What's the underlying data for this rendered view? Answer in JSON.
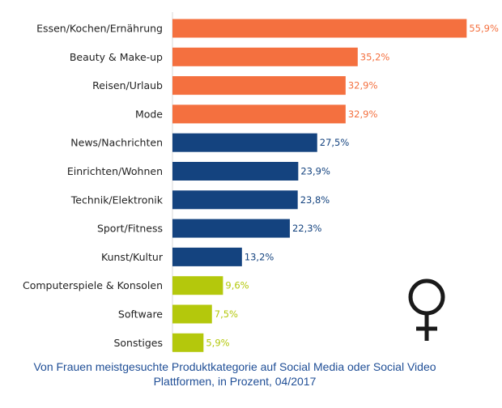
{
  "chart_data": {
    "type": "bar",
    "orientation": "horizontal",
    "title": "",
    "xlabel": "",
    "ylabel": "",
    "xlim": [
      0,
      60
    ],
    "grid": false,
    "legend": "none",
    "categories": [
      "Essen/Kochen/Ernährung",
      "Beauty & Make-up",
      "Reisen/Urlaub",
      "Mode",
      "News/Nachrichten",
      "Einrichten/Wohnen",
      "Technik/Elektronik",
      "Sport/Fitness",
      "Kunst/Kultur",
      "Computerspiele & Konsolen",
      "Software",
      "Sonstiges"
    ],
    "values": [
      55.9,
      35.2,
      32.9,
      32.9,
      27.5,
      23.9,
      23.8,
      22.3,
      13.2,
      9.6,
      7.5,
      5.9
    ],
    "value_labels": [
      "55,9%",
      "35,2%",
      "32,9%",
      "32,9%",
      "27,5%",
      "23,9%",
      "23,8%",
      "22,3%",
      "13,2%",
      "9,6%",
      "7,5%",
      "5,9%"
    ],
    "bar_colors": [
      "#f4703f",
      "#f4703f",
      "#f4703f",
      "#f4703f",
      "#14437f",
      "#14437f",
      "#14437f",
      "#14437f",
      "#14437f",
      "#b4c80c",
      "#b4c80c",
      "#b4c80c"
    ],
    "label_colors": [
      "#f4703f",
      "#f4703f",
      "#f4703f",
      "#f4703f",
      "#14437f",
      "#14437f",
      "#14437f",
      "#14437f",
      "#14437f",
      "#b4c80c",
      "#b4c80c",
      "#b4c80c"
    ]
  },
  "symbol": {
    "icon": "female-symbol-icon",
    "color": "#1a1a1a"
  },
  "caption": {
    "line1": "Von Frauen meistgesuchte Produktkategorie auf Social Media oder Social Video",
    "line2": "Plattformen, in Prozent, 04/2017",
    "color": "#1f4e96"
  }
}
